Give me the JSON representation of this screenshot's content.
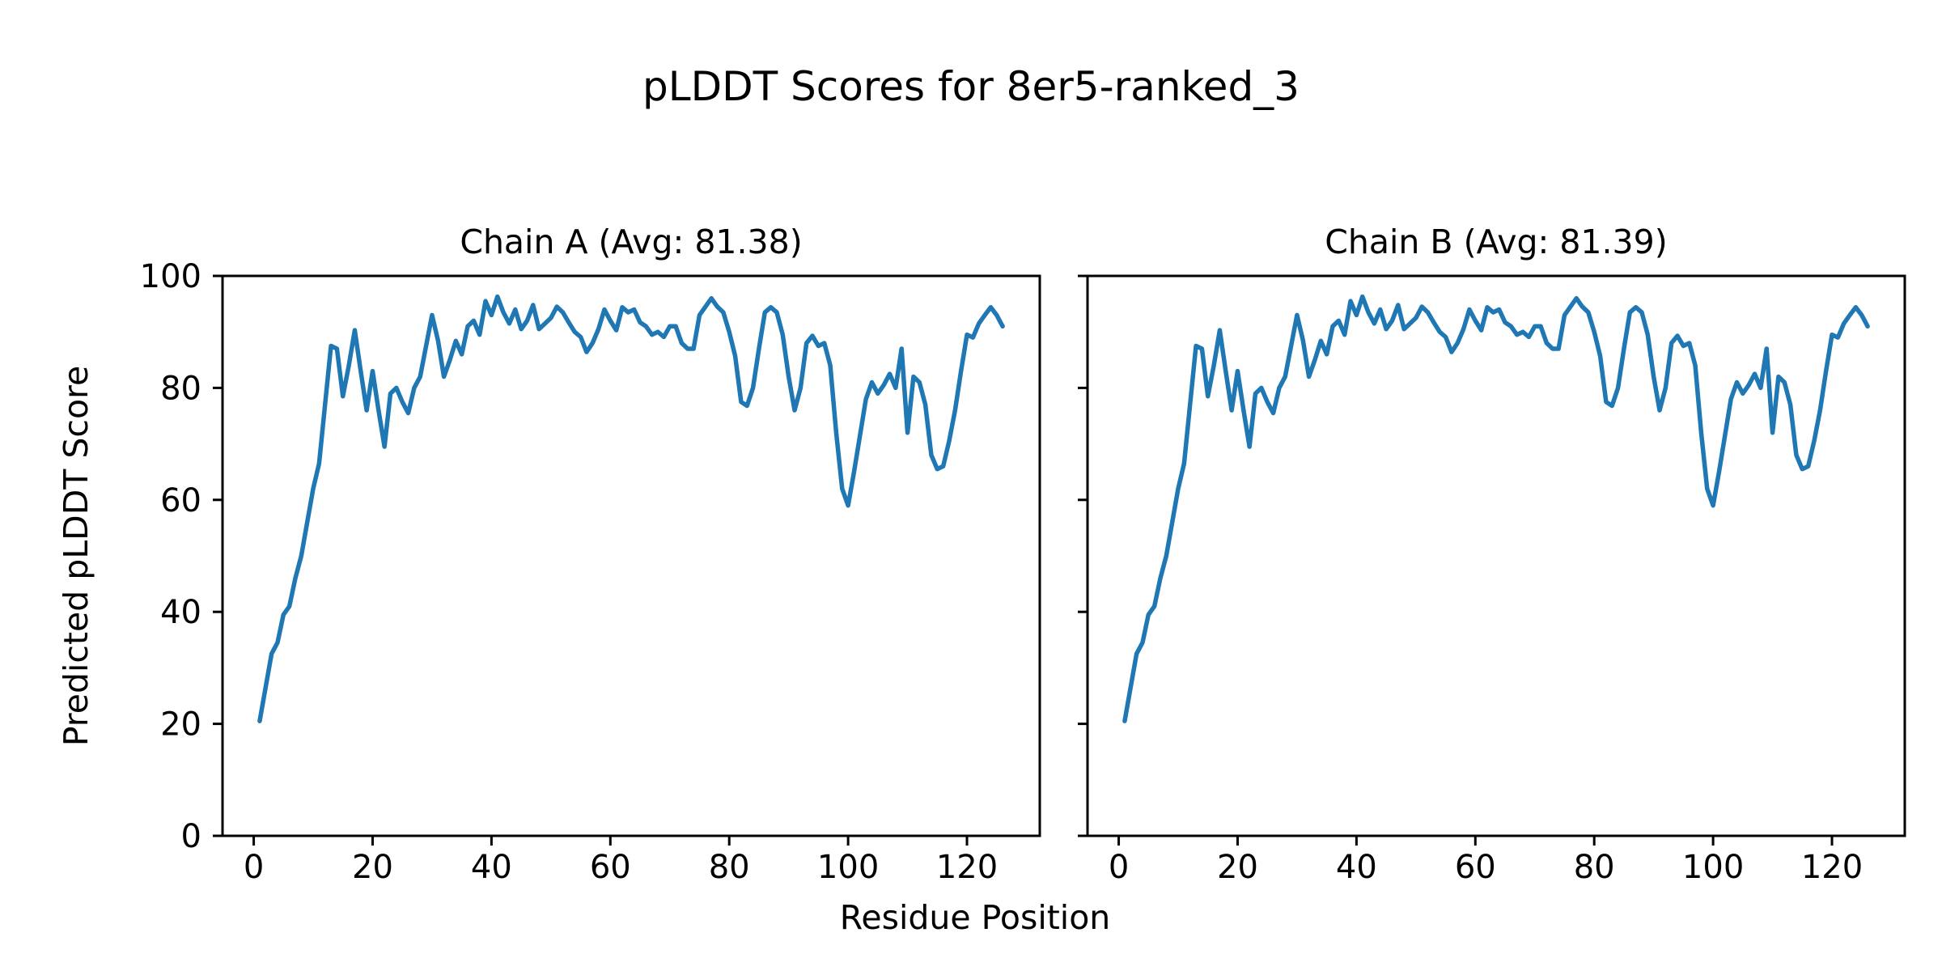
{
  "figure": {
    "title": "pLDDT Scores for 8er5-ranked_3",
    "xlabel": "Residue Position",
    "ylabel": "Predicted pLDDT Score",
    "background": "#ffffff",
    "text_color": "#000000",
    "spine_color": "#000000"
  },
  "chart_data": [
    {
      "type": "line",
      "title": "Chain A (Avg: 81.38)",
      "chain": "A",
      "avg": 81.38,
      "line_color": "#1f77b4",
      "xlim": [
        -5.25,
        132.25
      ],
      "ylim": [
        0,
        100
      ],
      "xticks": [
        0,
        20,
        40,
        60,
        80,
        100,
        120
      ],
      "yticks": [
        0,
        20,
        40,
        60,
        80,
        100
      ],
      "y_tick_labels_visible": true,
      "grid": false,
      "legend": false,
      "x_start": 1,
      "values": [
        20.5,
        26.5,
        32.5,
        34.5,
        39.5,
        41,
        46,
        50,
        56,
        62,
        66.5,
        77,
        87.5,
        87,
        78.5,
        84,
        90.3,
        83,
        76,
        83,
        76,
        69.5,
        79,
        80,
        77.5,
        75.5,
        80,
        82,
        87.5,
        93,
        88.5,
        82,
        85,
        88.4,
        86,
        91,
        92,
        89.5,
        95.5,
        93,
        96.3,
        93.5,
        91.5,
        94,
        90.5,
        92,
        94.8,
        90.5,
        91.5,
        92.5,
        94.5,
        93.5,
        91.7,
        90,
        89.1,
        86.4,
        88,
        90.5,
        94,
        92,
        90.3,
        94.4,
        93.5,
        94,
        91.7,
        91,
        89.5,
        90,
        89.1,
        91,
        91,
        88,
        87,
        87,
        93,
        94.5,
        96,
        94.5,
        93.5,
        90,
        85.7,
        77.5,
        76.8,
        80,
        87,
        93.5,
        94.4,
        93.5,
        89.5,
        82,
        76,
        80,
        88,
        89.3,
        87.5,
        88,
        84,
        72,
        62,
        59,
        65,
        71.5,
        78,
        81,
        79,
        80.5,
        82.5,
        80,
        87,
        72,
        82,
        81,
        77,
        68,
        65.5,
        66,
        70.5,
        76,
        83,
        89.5,
        89,
        91.5,
        93,
        94.4,
        93,
        91
      ]
    },
    {
      "type": "line",
      "title": "Chain B (Avg: 81.39)",
      "chain": "B",
      "avg": 81.39,
      "line_color": "#1f77b4",
      "xlim": [
        -5.25,
        132.25
      ],
      "ylim": [
        0,
        100
      ],
      "xticks": [
        0,
        20,
        40,
        60,
        80,
        100,
        120
      ],
      "yticks": [
        0,
        20,
        40,
        60,
        80,
        100
      ],
      "y_tick_labels_visible": false,
      "grid": false,
      "legend": false,
      "x_start": 1,
      "values": [
        20.5,
        26.5,
        32.5,
        34.5,
        39.5,
        41,
        46,
        50,
        56,
        62,
        66.5,
        77,
        87.5,
        87,
        78.5,
        84,
        90.3,
        83,
        76,
        83,
        76,
        69.5,
        79,
        80,
        77.5,
        75.5,
        80,
        82,
        87.5,
        93,
        88.5,
        82,
        85,
        88.4,
        86,
        91,
        92,
        89.5,
        95.5,
        93,
        96.3,
        93.5,
        91.5,
        94,
        90.5,
        92,
        94.8,
        90.5,
        91.5,
        92.5,
        94.5,
        93.5,
        91.7,
        90,
        89.1,
        86.4,
        88,
        90.5,
        94,
        92,
        90.3,
        94.4,
        93.5,
        94,
        91.7,
        91,
        89.5,
        90,
        89.1,
        91,
        91,
        88,
        87,
        87,
        93,
        94.5,
        96,
        94.5,
        93.5,
        90,
        85.7,
        77.5,
        76.8,
        80,
        87,
        93.5,
        94.4,
        93.5,
        89.5,
        82,
        76,
        80,
        88,
        89.3,
        87.5,
        88,
        84,
        72,
        62,
        59,
        65,
        71.5,
        78,
        81,
        79,
        80.5,
        82.5,
        80,
        87,
        72,
        82,
        81,
        77,
        68,
        65.5,
        66,
        70.5,
        76,
        83,
        89.5,
        89,
        91.5,
        93,
        94.4,
        93,
        91
      ]
    }
  ]
}
